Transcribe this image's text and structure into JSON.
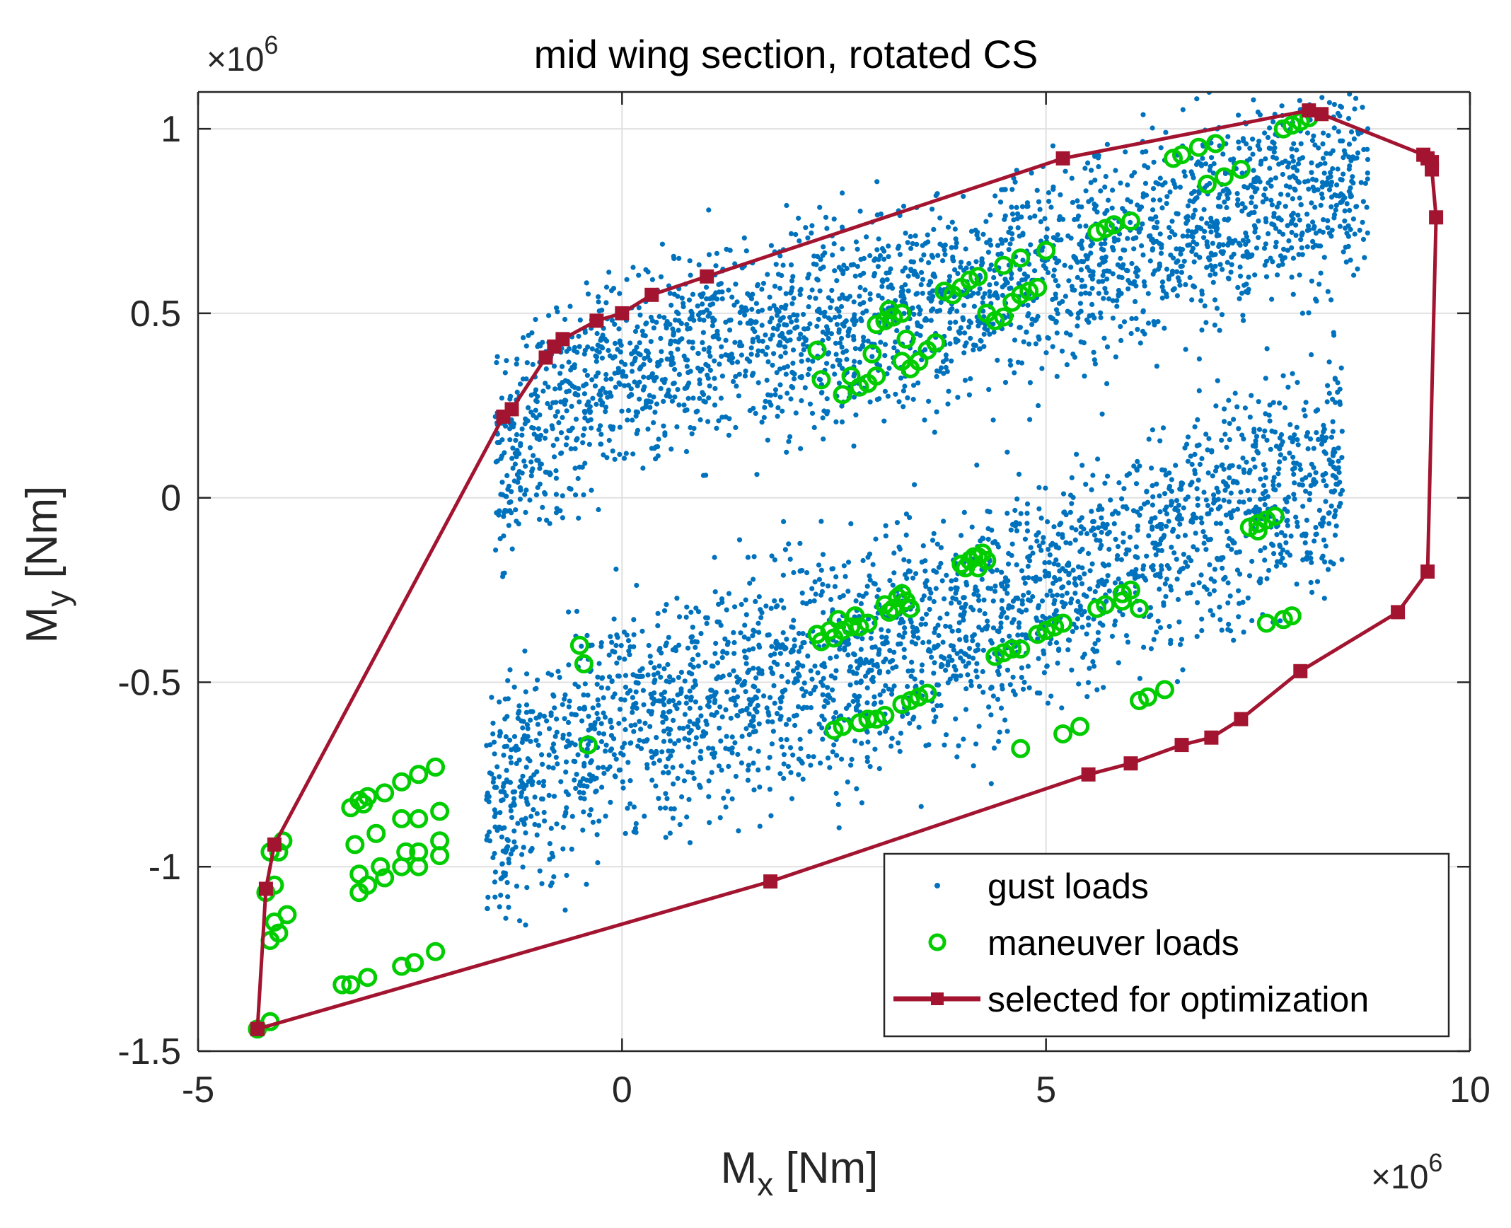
{
  "chart_data": {
    "type": "scatter",
    "title": "mid wing section, rotated CS",
    "xlabel": {
      "main": "M",
      "sub": "x",
      "unit": " [Nm]"
    },
    "ylabel": {
      "main": "M",
      "sub": "y",
      "unit": " [Nm]"
    },
    "x_multiplier": {
      "base": "×10",
      "exp": "6"
    },
    "y_multiplier": {
      "base": "×10",
      "exp": "6"
    },
    "xlim": [
      -5,
      10
    ],
    "ylim": [
      -1.5,
      1.1
    ],
    "xticks": [
      -5,
      0,
      5,
      10
    ],
    "xtick_labels": [
      "-5",
      "0",
      "5",
      "10"
    ],
    "yticks": [
      -1.5,
      -1,
      -0.5,
      0,
      0.5,
      1
    ],
    "ytick_labels": [
      "-1.5",
      "-1",
      "-0.5",
      "0",
      "0.5",
      "1"
    ],
    "grid": true,
    "legend_position": "bottom-right",
    "series": [
      {
        "name": "gust loads",
        "marker": "dot",
        "color": "#0072BD",
        "generator": {
          "description": "two elongated clouds of gust load points",
          "clusters": [
            {
              "x_range": [
                -1.5,
                8.8
              ],
              "y_center_at_x": [
                [
                  -1.5,
                  0.1
                ],
                [
                  0,
                  0.35
                ],
                [
                  4,
                  0.55
                ],
                [
                  8.5,
                  0.85
                ]
              ],
              "y_spread": 0.25,
              "count": 2600
            },
            {
              "x_range": [
                -1.6,
                8.5
              ],
              "y_center_at_x": [
                [
                  -1.6,
                  -0.85
                ],
                [
                  0,
                  -0.6
                ],
                [
                  4,
                  -0.35
                ],
                [
                  8.5,
                  0.1
                ]
              ],
              "y_spread": 0.28,
              "count": 2600
            }
          ]
        }
      },
      {
        "name": "maneuver loads",
        "marker": "circle",
        "color": "#00CC00",
        "points": [
          [
            -4.3,
            -1.44
          ],
          [
            -4.15,
            -1.42
          ],
          [
            -4.15,
            -0.96
          ],
          [
            -4.0,
            -0.93
          ],
          [
            -4.05,
            -0.96
          ],
          [
            -4.1,
            -1.05
          ],
          [
            -4.2,
            -1.07
          ],
          [
            -3.95,
            -1.13
          ],
          [
            -4.1,
            -1.15
          ],
          [
            -4.05,
            -1.18
          ],
          [
            -4.15,
            -1.2
          ],
          [
            -3.2,
            -0.84
          ],
          [
            -3.1,
            -0.82
          ],
          [
            -3.05,
            -0.83
          ],
          [
            -3.0,
            -0.81
          ],
          [
            -2.8,
            -0.8
          ],
          [
            -2.6,
            -0.77
          ],
          [
            -2.4,
            -0.75
          ],
          [
            -2.2,
            -0.73
          ],
          [
            -3.15,
            -0.94
          ],
          [
            -2.9,
            -0.91
          ],
          [
            -2.6,
            -0.87
          ],
          [
            -2.4,
            -0.87
          ],
          [
            -2.15,
            -0.85
          ],
          [
            -3.1,
            -1.02
          ],
          [
            -2.85,
            -1.0
          ],
          [
            -2.55,
            -0.96
          ],
          [
            -2.4,
            -0.96
          ],
          [
            -2.15,
            -0.93
          ],
          [
            -2.15,
            -0.97
          ],
          [
            -3.1,
            -1.07
          ],
          [
            -3.0,
            -1.05
          ],
          [
            -2.8,
            -1.03
          ],
          [
            -2.6,
            -1.0
          ],
          [
            -2.4,
            -1.0
          ],
          [
            -3.3,
            -1.32
          ],
          [
            -3.2,
            -1.32
          ],
          [
            -3.0,
            -1.3
          ],
          [
            -2.6,
            -1.27
          ],
          [
            -2.45,
            -1.26
          ],
          [
            -2.2,
            -1.23
          ],
          [
            -0.5,
            -0.4
          ],
          [
            -0.45,
            -0.45
          ],
          [
            -0.4,
            -0.67
          ],
          [
            2.3,
            -0.37
          ],
          [
            2.35,
            -0.39
          ],
          [
            2.5,
            -0.38
          ],
          [
            2.6,
            -0.36
          ],
          [
            2.7,
            -0.35
          ],
          [
            2.8,
            -0.35
          ],
          [
            2.9,
            -0.34
          ],
          [
            2.55,
            -0.33
          ],
          [
            2.75,
            -0.32
          ],
          [
            2.45,
            -0.36
          ],
          [
            3.1,
            -0.29
          ],
          [
            3.2,
            -0.3
          ],
          [
            3.25,
            -0.27
          ],
          [
            3.35,
            -0.28
          ],
          [
            3.4,
            -0.3
          ],
          [
            3.3,
            -0.26
          ],
          [
            3.15,
            -0.31
          ],
          [
            2.5,
            -0.63
          ],
          [
            2.6,
            -0.62
          ],
          [
            2.8,
            -0.61
          ],
          [
            2.9,
            -0.6
          ],
          [
            3.0,
            -0.6
          ],
          [
            3.1,
            -0.59
          ],
          [
            3.3,
            -0.56
          ],
          [
            3.4,
            -0.55
          ],
          [
            3.5,
            -0.54
          ],
          [
            3.6,
            -0.53
          ],
          [
            4.0,
            -0.18
          ],
          [
            4.1,
            -0.17
          ],
          [
            4.15,
            -0.16
          ],
          [
            4.2,
            -0.16
          ],
          [
            4.25,
            -0.15
          ],
          [
            4.3,
            -0.17
          ],
          [
            4.05,
            -0.19
          ],
          [
            4.2,
            -0.19
          ],
          [
            4.4,
            -0.43
          ],
          [
            4.5,
            -0.42
          ],
          [
            4.6,
            -0.41
          ],
          [
            4.7,
            -0.41
          ],
          [
            4.9,
            -0.37
          ],
          [
            5.0,
            -0.36
          ],
          [
            5.1,
            -0.35
          ],
          [
            5.2,
            -0.34
          ],
          [
            4.7,
            -0.68
          ],
          [
            5.2,
            -0.64
          ],
          [
            5.4,
            -0.62
          ],
          [
            5.6,
            -0.3
          ],
          [
            5.7,
            -0.29
          ],
          [
            5.9,
            -0.26
          ],
          [
            6.0,
            -0.25
          ],
          [
            6.1,
            -0.55
          ],
          [
            6.2,
            -0.54
          ],
          [
            6.4,
            -0.52
          ],
          [
            6.1,
            -0.3
          ],
          [
            5.9,
            -0.28
          ],
          [
            7.4,
            -0.08
          ],
          [
            7.5,
            -0.07
          ],
          [
            7.6,
            -0.06
          ],
          [
            7.7,
            -0.05
          ],
          [
            7.5,
            -0.09
          ],
          [
            7.6,
            -0.34
          ],
          [
            7.8,
            -0.33
          ],
          [
            7.9,
            -0.32
          ],
          [
            2.3,
            0.4
          ],
          [
            2.35,
            0.32
          ],
          [
            2.6,
            0.28
          ],
          [
            2.7,
            0.33
          ],
          [
            2.8,
            0.3
          ],
          [
            2.9,
            0.31
          ],
          [
            3.0,
            0.33
          ],
          [
            2.95,
            0.39
          ],
          [
            3.3,
            0.37
          ],
          [
            3.4,
            0.35
          ],
          [
            3.5,
            0.37
          ],
          [
            3.6,
            0.4
          ],
          [
            3.7,
            0.42
          ],
          [
            3.35,
            0.43
          ],
          [
            3.0,
            0.47
          ],
          [
            3.1,
            0.48
          ],
          [
            3.2,
            0.49
          ],
          [
            3.3,
            0.5
          ],
          [
            3.15,
            0.51
          ],
          [
            3.8,
            0.56
          ],
          [
            3.9,
            0.55
          ],
          [
            4.0,
            0.57
          ],
          [
            4.1,
            0.59
          ],
          [
            4.2,
            0.6
          ],
          [
            4.3,
            0.5
          ],
          [
            4.4,
            0.48
          ],
          [
            4.5,
            0.49
          ],
          [
            4.6,
            0.53
          ],
          [
            4.7,
            0.55
          ],
          [
            4.8,
            0.56
          ],
          [
            4.9,
            0.57
          ],
          [
            4.5,
            0.63
          ],
          [
            4.7,
            0.65
          ],
          [
            5.0,
            0.67
          ],
          [
            5.6,
            0.72
          ],
          [
            5.7,
            0.73
          ],
          [
            5.8,
            0.74
          ],
          [
            6.0,
            0.75
          ],
          [
            6.5,
            0.92
          ],
          [
            6.6,
            0.93
          ],
          [
            6.8,
            0.95
          ],
          [
            7.0,
            0.96
          ],
          [
            6.9,
            0.85
          ],
          [
            7.1,
            0.87
          ],
          [
            7.3,
            0.89
          ],
          [
            7.8,
            1.0
          ],
          [
            7.9,
            1.01
          ],
          [
            8.0,
            1.02
          ],
          [
            8.1,
            1.03
          ]
        ]
      },
      {
        "name": "selected for optimization",
        "marker": "square-line",
        "color": "#A2142F",
        "points": [
          [
            -4.3,
            -1.44
          ],
          [
            -4.2,
            -1.06
          ],
          [
            -4.1,
            -0.94
          ],
          [
            -1.4,
            0.22
          ],
          [
            -1.3,
            0.24
          ],
          [
            -0.9,
            0.38
          ],
          [
            -0.8,
            0.41
          ],
          [
            -0.7,
            0.43
          ],
          [
            -0.3,
            0.48
          ],
          [
            0,
            0.5
          ],
          [
            0.35,
            0.55
          ],
          [
            1.0,
            0.6
          ],
          [
            5.2,
            0.92
          ],
          [
            8.1,
            1.05
          ],
          [
            8.25,
            1.04
          ],
          [
            9.45,
            0.93
          ],
          [
            9.5,
            0.92
          ],
          [
            9.55,
            0.91
          ],
          [
            9.55,
            0.89
          ],
          [
            9.6,
            0.76
          ],
          [
            9.5,
            -0.2
          ],
          [
            9.15,
            -0.31
          ],
          [
            8.0,
            -0.47
          ],
          [
            7.3,
            -0.6
          ],
          [
            6.95,
            -0.65
          ],
          [
            6.6,
            -0.67
          ],
          [
            6.0,
            -0.72
          ],
          [
            5.5,
            -0.75
          ],
          [
            1.75,
            -1.04
          ],
          [
            -4.3,
            -1.44
          ]
        ]
      }
    ]
  }
}
